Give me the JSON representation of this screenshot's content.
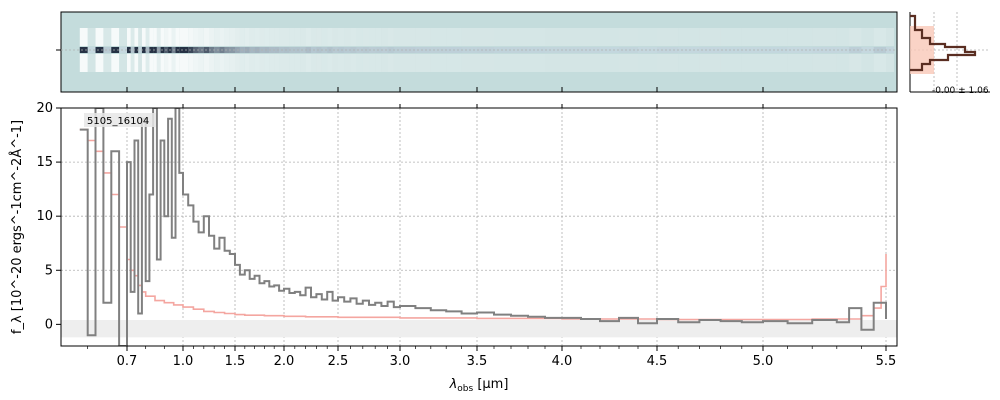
{
  "chart_data": {
    "type": "line",
    "object_label": "5105_16104",
    "xlabel_main": "λ",
    "xlabel_sub": "obs",
    "xlabel_unit": " [μm]",
    "ylabel": "f_λ [10^-20 ergs^-1cm^-2Å^-1]",
    "ylim": [
      -2,
      20
    ],
    "yticks": [
      0,
      5,
      10,
      15,
      20
    ],
    "xticks": [
      "0.7",
      "1.0",
      "1.5",
      "2.0",
      "2.5",
      "3.0",
      "3.5",
      "4.0",
      "4.5",
      "5.0",
      "5.5"
    ],
    "grid": true,
    "inset_label": "-0.00 ± 1.06",
    "colors": {
      "data": "#808080",
      "model": "#f4a6a0",
      "error_band": "#e8e8e8",
      "twod_bg": "#c4dcdc",
      "profile_line": "#5a2e22",
      "profile_fill": "#f9c8b8"
    },
    "series": [
      {
        "x": [
          0.58,
          0.6,
          0.62,
          0.64,
          0.66,
          0.68,
          0.7,
          0.72,
          0.74,
          0.76,
          0.78,
          0.8,
          0.82,
          0.84,
          0.86,
          0.88,
          0.9,
          0.92,
          0.94,
          0.96,
          0.98,
          1.0,
          1.05,
          1.1,
          1.15,
          1.2,
          1.25,
          1.3,
          1.35,
          1.4,
          1.45,
          1.5,
          1.55,
          1.6,
          1.65,
          1.7,
          1.75,
          1.8,
          1.85,
          1.9,
          1.95,
          2.0,
          2.05,
          2.1,
          2.15,
          2.2,
          2.25,
          2.3,
          2.35,
          2.4,
          2.45,
          2.5,
          2.55,
          2.6,
          2.65,
          2.7,
          2.75,
          2.8,
          2.85,
          2.9,
          2.95,
          3.0,
          3.1,
          3.2,
          3.3,
          3.4,
          3.5,
          3.6,
          3.7,
          3.8,
          3.9,
          4.0,
          4.1,
          4.2,
          4.3,
          4.4,
          4.5,
          4.6,
          4.7,
          4.8,
          4.9,
          5.0,
          5.1,
          5.2,
          5.3,
          5.35,
          5.4,
          5.45,
          5.5
        ],
        "y": [
          18,
          -1,
          20,
          2,
          16,
          -2,
          15,
          3,
          17,
          1,
          19,
          4,
          12,
          20,
          6,
          17,
          10,
          19,
          8,
          20,
          14,
          12,
          11,
          9.5,
          8.5,
          10,
          8.2,
          7.0,
          8.0,
          6.8,
          6.5,
          5.5,
          4.6,
          5.0,
          4.2,
          4.5,
          3.8,
          4.0,
          3.5,
          3.6,
          3.1,
          3.3,
          2.9,
          3.0,
          2.7,
          3.4,
          2.5,
          2.8,
          2.3,
          3.0,
          2.2,
          2.5,
          2.1,
          2.4,
          1.9,
          2.2,
          1.8,
          2.0,
          1.7,
          2.1,
          1.6,
          1.7,
          1.5,
          1.3,
          1.2,
          1.0,
          1.1,
          0.9,
          0.8,
          0.7,
          0.6,
          0.6,
          0.5,
          0.3,
          0.6,
          0.1,
          0.5,
          0.2,
          0.4,
          0.3,
          0.2,
          0.3,
          0.1,
          0.4,
          0.2,
          1.5,
          -0.5,
          2.0,
          0.5
        ]
      },
      {
        "x": [
          0.58,
          0.6,
          0.62,
          0.64,
          0.66,
          0.68,
          0.7,
          0.72,
          0.74,
          0.76,
          0.78,
          0.8,
          0.85,
          0.9,
          0.95,
          1.0,
          1.1,
          1.2,
          1.3,
          1.4,
          1.5,
          1.6,
          1.8,
          2.0,
          2.2,
          2.5,
          3.0,
          3.5,
          4.0,
          4.5,
          5.0,
          5.2,
          5.4,
          5.45,
          5.48,
          5.5
        ],
        "y": [
          18,
          17,
          16,
          14,
          12,
          9,
          6,
          5,
          4.5,
          3.6,
          3.0,
          2.6,
          2.2,
          2.0,
          1.8,
          1.6,
          1.4,
          1.2,
          1.1,
          1.0,
          0.9,
          0.85,
          0.8,
          0.75,
          0.7,
          0.65,
          0.6,
          0.55,
          0.5,
          0.45,
          0.45,
          0.5,
          0.8,
          1.5,
          3.5,
          6.5
        ]
      }
    ]
  }
}
